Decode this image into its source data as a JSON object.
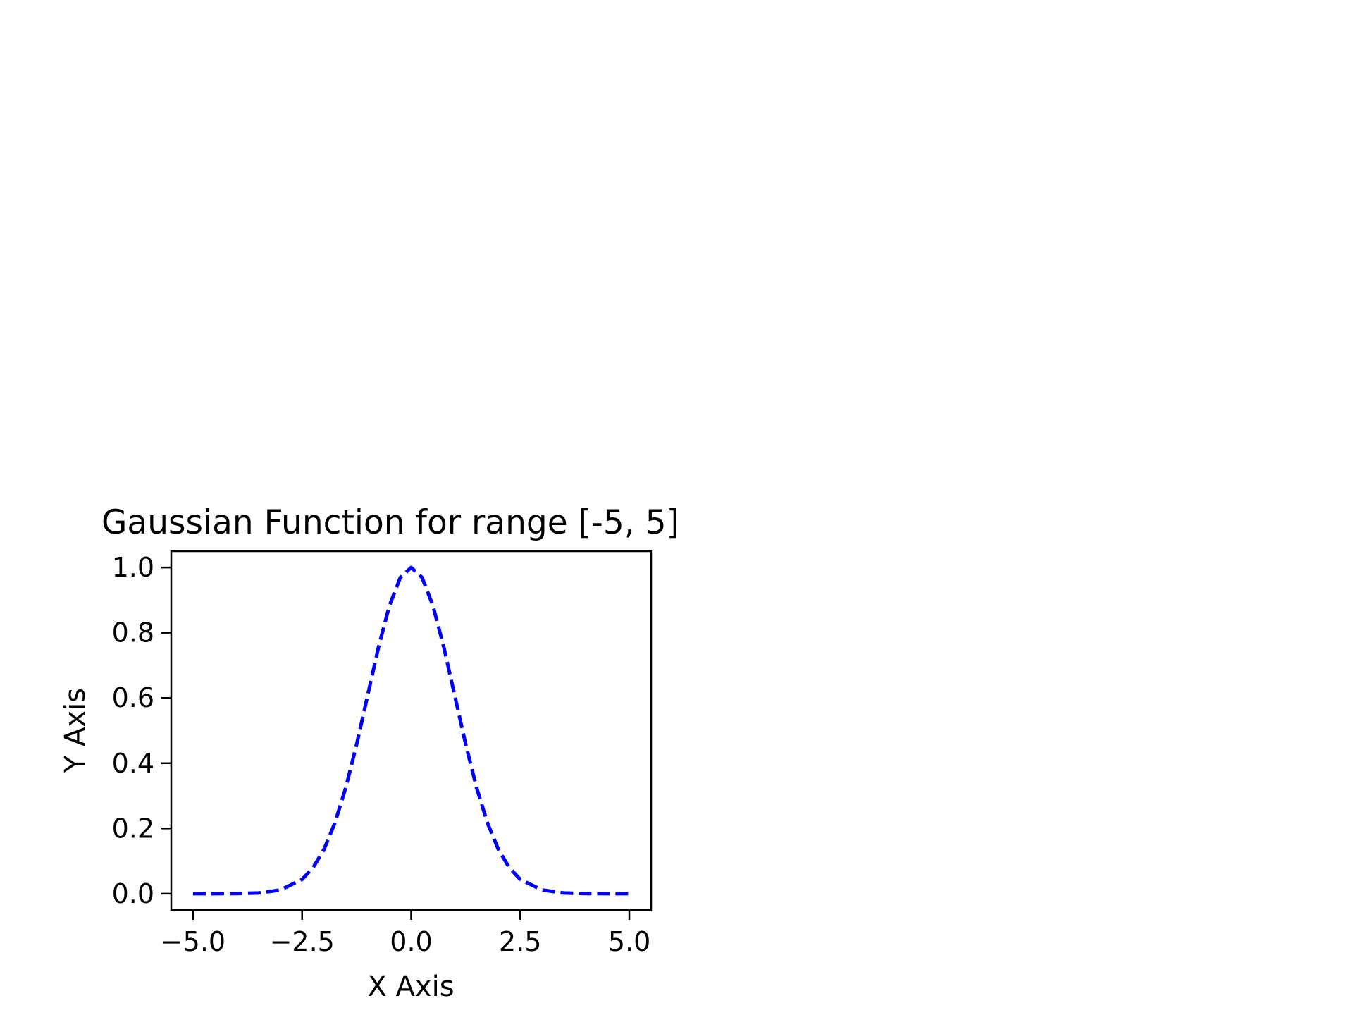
{
  "chart_data": {
    "type": "line",
    "title": "Gaussian Function for range [-5, 5]",
    "xlabel": "X Axis",
    "ylabel": "Y Axis",
    "xlim": [
      -5.5,
      5.5
    ],
    "ylim": [
      -0.05,
      1.05
    ],
    "grid": false,
    "legend": "none",
    "x_ticks": [
      {
        "value": -5.0,
        "label": "−5.0"
      },
      {
        "value": -2.5,
        "label": "−2.5"
      },
      {
        "value": 0.0,
        "label": "0.0"
      },
      {
        "value": 2.5,
        "label": "2.5"
      },
      {
        "value": 5.0,
        "label": "5.0"
      }
    ],
    "y_ticks": [
      {
        "value": 0.0,
        "label": "0.0"
      },
      {
        "value": 0.2,
        "label": "0.2"
      },
      {
        "value": 0.4,
        "label": "0.4"
      },
      {
        "value": 0.6,
        "label": "0.6"
      },
      {
        "value": 0.8,
        "label": "0.8"
      },
      {
        "value": 1.0,
        "label": "1.0"
      }
    ],
    "series": [
      {
        "color": "#0000ff",
        "line_style": "dashed",
        "x": [
          -5.0,
          -4.5,
          -4.0,
          -3.5,
          -3.0,
          -2.5,
          -2.25,
          -2.0,
          -1.75,
          -1.5,
          -1.25,
          -1.0,
          -0.75,
          -0.5,
          -0.25,
          0.0,
          0.25,
          0.5,
          0.75,
          1.0,
          1.25,
          1.5,
          1.75,
          2.0,
          2.25,
          2.5,
          3.0,
          3.5,
          4.0,
          4.5,
          5.0
        ],
        "y": [
          0.0,
          0.0,
          0.0003,
          0.0022,
          0.0111,
          0.0439,
          0.0796,
          0.1353,
          0.2163,
          0.3247,
          0.4578,
          0.6065,
          0.7548,
          0.8825,
          0.9692,
          1.0,
          0.9692,
          0.8825,
          0.7548,
          0.6065,
          0.4578,
          0.3247,
          0.2163,
          0.1353,
          0.0796,
          0.0439,
          0.0111,
          0.0022,
          0.0003,
          0.0,
          0.0
        ]
      }
    ]
  }
}
